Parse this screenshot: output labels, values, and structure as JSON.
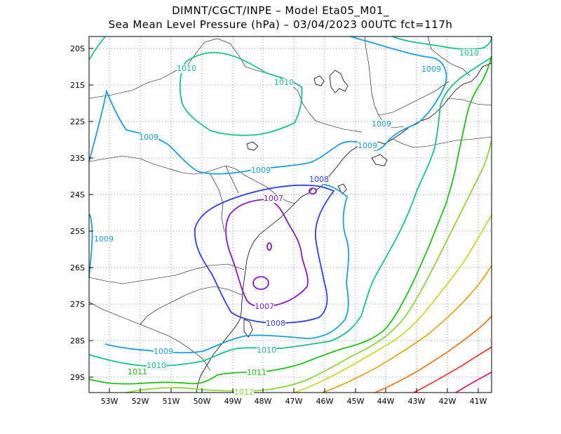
{
  "header": {
    "line1": "DIMNT/CGCT/INPE –  Model Eta05_M01_",
    "line2": "Sea Mean Level Pressure (hPa) – 03/04/2023 00UTC fct=117h"
  },
  "axes": {
    "lat_labels": [
      "20S",
      "21S",
      "22S",
      "23S",
      "24S",
      "25S",
      "26S",
      "27S",
      "28S",
      "29S"
    ],
    "lon_labels": [
      "53W",
      "52W",
      "51W",
      "50W",
      "49W",
      "48W",
      "47W",
      "46W",
      "45W",
      "44W",
      "43W",
      "42W",
      "41W"
    ]
  },
  "contour_labels": [
    {
      "text": "1010",
      "color": "#19c18c"
    },
    {
      "text": "1010",
      "color": "#19c18c"
    },
    {
      "text": "1010",
      "color": "#19c18c"
    },
    {
      "text": "1009",
      "color": "#1c9de0"
    },
    {
      "text": "1009",
      "color": "#1c9de0"
    },
    {
      "text": "1009",
      "color": "#1c9de0"
    },
    {
      "text": "1009",
      "color": "#1c9de0"
    },
    {
      "text": "1009",
      "color": "#1c9de0"
    },
    {
      "text": "1009",
      "color": "#1c9de0"
    },
    {
      "text": "1009",
      "color": "#1c9de0"
    },
    {
      "text": "1008",
      "color": "#2f3fdc"
    },
    {
      "text": "1008",
      "color": "#2f3fdc"
    },
    {
      "text": "1007",
      "color": "#8a17c6"
    },
    {
      "text": "1007",
      "color": "#8a17c6"
    },
    {
      "text": "1010",
      "color": "#19c18c"
    },
    {
      "text": "1010",
      "color": "#19c18c"
    },
    {
      "text": "1011",
      "color": "#22c11b"
    },
    {
      "text": "1011",
      "color": "#22c11b"
    },
    {
      "text": "1012",
      "color": "#8ed43a"
    }
  ],
  "colors": {
    "c1007": "#8a17c6",
    "c1008": "#2f3fdc",
    "c1009": "#1c9de0",
    "c1010": "#19c18c",
    "c1011": "#22c11b",
    "c1012": "#8ed43a",
    "c1013": "#c7d92e",
    "c1014": "#e0a81d",
    "c1015": "#e87b25",
    "c1016": "#e83b35",
    "c1017": "#d6186c",
    "coast": "#000000",
    "grid": "#9a9a9a"
  }
}
